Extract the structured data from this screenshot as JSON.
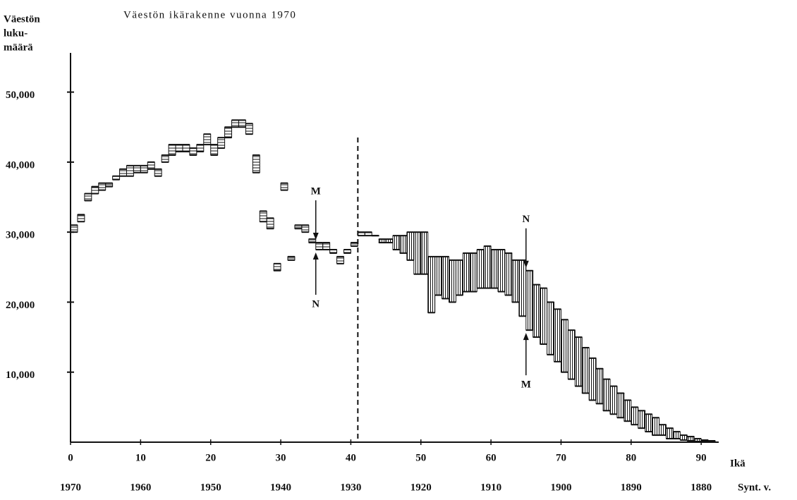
{
  "chart_data": {
    "type": "step-range",
    "title": "Väestön ikärakenne vuonna 1970",
    "ylabel": [
      "Väestön",
      "luku-",
      "määrä"
    ],
    "xlabel": "Ikä",
    "x2label": "Synt. v.",
    "x": [
      0,
      1,
      2,
      3,
      4,
      5,
      6,
      7,
      8,
      9,
      10,
      11,
      12,
      13,
      14,
      15,
      16,
      17,
      18,
      19,
      20,
      21,
      22,
      23,
      24,
      25,
      26,
      27,
      28,
      29,
      30,
      31,
      32,
      33,
      34,
      35,
      36,
      37,
      38,
      39,
      40,
      41,
      42,
      43,
      44,
      45,
      46,
      47,
      48,
      49,
      50,
      51,
      52,
      53,
      54,
      55,
      56,
      57,
      58,
      59,
      60,
      61,
      62,
      63,
      64,
      65,
      66,
      67,
      68,
      69,
      70,
      71,
      72,
      73,
      74,
      75,
      76,
      77,
      78,
      79,
      80,
      81,
      82,
      83,
      84,
      85,
      86,
      87,
      88,
      89,
      90,
      91
    ],
    "series": [
      {
        "name": "M",
        "color": "#111111",
        "values": [
          31000,
          32500,
          35500,
          36500,
          37000,
          37000,
          38000,
          39000,
          39500,
          39500,
          39500,
          40000,
          39000,
          41000,
          42500,
          42500,
          42500,
          42000,
          42500,
          44000,
          42500,
          43500,
          45000,
          46000,
          46000,
          45500,
          41000,
          33000,
          32000,
          25500,
          37000,
          26500,
          31000,
          31000,
          29000,
          28500,
          28500,
          27500,
          26500,
          27500,
          28500,
          30000,
          30000,
          29500,
          28500,
          28500,
          27500,
          27000,
          26000,
          24000,
          24000,
          18500,
          21000,
          20500,
          20000,
          21000,
          21500,
          21500,
          22000,
          22000,
          22000,
          21500,
          21000,
          20000,
          18000,
          16000,
          15000,
          14000,
          12500,
          11500,
          10000,
          9000,
          8000,
          7000,
          6000,
          5500,
          4500,
          4000,
          3500,
          3000,
          2500,
          2000,
          1500,
          1000,
          1000,
          500,
          500,
          300,
          200,
          100,
          100,
          0
        ]
      },
      {
        "name": "N",
        "color": "#111111",
        "values": [
          30000,
          31500,
          34500,
          35500,
          36000,
          36500,
          37500,
          38000,
          38000,
          38500,
          38500,
          39000,
          38000,
          40000,
          41000,
          41500,
          41500,
          41000,
          41500,
          42500,
          41000,
          42000,
          43500,
          45000,
          45000,
          44000,
          38500,
          31500,
          30500,
          24500,
          36000,
          26000,
          30500,
          30000,
          28500,
          27500,
          27500,
          27000,
          25500,
          27000,
          28000,
          29500,
          29500,
          29500,
          29000,
          29000,
          29500,
          29500,
          30000,
          30000,
          30000,
          26500,
          26500,
          26500,
          26000,
          26000,
          27000,
          27000,
          27500,
          28000,
          27500,
          27500,
          27000,
          26000,
          26000,
          24500,
          22500,
          22000,
          20000,
          19000,
          17500,
          16000,
          15000,
          13500,
          12000,
          10500,
          9000,
          8000,
          7000,
          6000,
          5000,
          4500,
          4000,
          3500,
          2500,
          2000,
          1500,
          1000,
          800,
          500,
          300,
          200
        ]
      }
    ],
    "xlim": [
      0,
      92.5
    ],
    "xticks": [
      0,
      10,
      20,
      30,
      40,
      50,
      60,
      70,
      80,
      90
    ],
    "x2lim": [
      1970,
      1877.5
    ],
    "x2ticks": [
      1970,
      1960,
      1950,
      1940,
      1930,
      1920,
      1910,
      1900,
      1890,
      1880
    ],
    "ylim": [
      0,
      55600
    ],
    "yticks": [
      {
        "value": 10000,
        "label": "10,000"
      },
      {
        "value": 20000,
        "label": "20,000"
      },
      {
        "value": 30000,
        "label": "30,000"
      },
      {
        "value": 40000,
        "label": "40,000"
      },
      {
        "value": 50000,
        "label": "50,000"
      }
    ],
    "vline": 41
  }
}
